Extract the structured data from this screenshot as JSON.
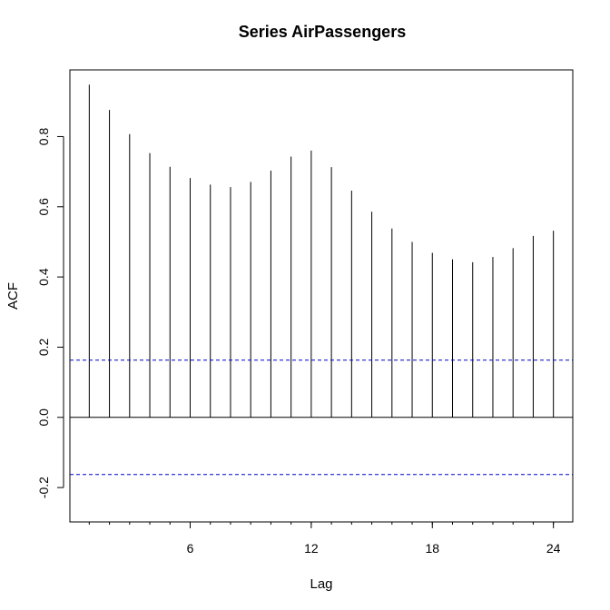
{
  "chart_data": {
    "type": "bar",
    "title": "Series  AirPassengers",
    "xlabel": "Lag",
    "ylabel": "ACF",
    "x": [
      1,
      2,
      3,
      4,
      5,
      6,
      7,
      8,
      9,
      10,
      11,
      12,
      13,
      14,
      15,
      16,
      17,
      18,
      19,
      20,
      21,
      22,
      23,
      24
    ],
    "values": [
      0.948,
      0.876,
      0.807,
      0.753,
      0.714,
      0.682,
      0.663,
      0.656,
      0.671,
      0.703,
      0.743,
      0.76,
      0.713,
      0.646,
      0.586,
      0.538,
      0.5,
      0.469,
      0.45,
      0.442,
      0.457,
      0.482,
      0.517,
      0.532
    ],
    "x_ticks": [
      6,
      12,
      18,
      24
    ],
    "x_tick_labels": [
      "6",
      "12",
      "18",
      "24"
    ],
    "x_minor_ticks": [
      1,
      2,
      3,
      4,
      5,
      6,
      7,
      8,
      9,
      10,
      11,
      12,
      13,
      14,
      15,
      16,
      17,
      18,
      19,
      20,
      21,
      22,
      23,
      24
    ],
    "y_ticks": [
      -0.2,
      0.0,
      0.2,
      0.4,
      0.6,
      0.8
    ],
    "y_tick_labels": [
      "-0.2",
      "0.0",
      "0.2",
      "0.4",
      "0.6",
      "0.8"
    ],
    "xlim": [
      0.04,
      24.96
    ],
    "ylim": [
      -0.298,
      0.99
    ],
    "confidence_bound": 0.163,
    "colors": {
      "bars": "#000000",
      "bounds": "#0000cc",
      "axis": "#000000"
    },
    "grid": false,
    "legend": "none"
  }
}
